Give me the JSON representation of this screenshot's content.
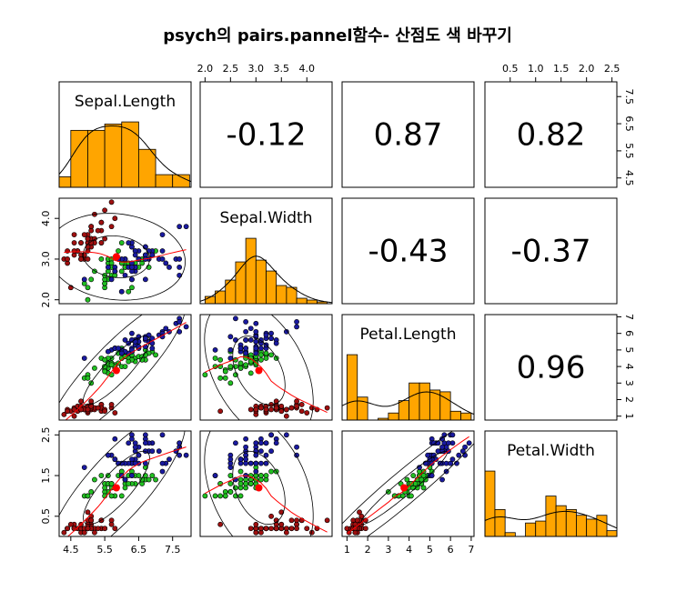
{
  "chart_data": {
    "type": "scatter-matrix",
    "title": "psych의 pairs.pannel함수- 산점도 색 바꾸기",
    "variables": [
      "Sepal.Length",
      "Sepal.Width",
      "Petal.Length",
      "Petal.Width"
    ],
    "lims": [
      [
        4.156,
        8.044
      ],
      [
        1.904,
        4.496
      ],
      [
        0.764,
        7.136
      ],
      [
        0.004,
        2.596
      ]
    ],
    "xticks": [
      [
        4.5,
        5.5,
        6.5,
        7.5
      ],
      [
        {
          "value": 2,
          "label": "2.0"
        },
        2.5,
        {
          "value": 3,
          "label": "3.0"
        },
        3.5,
        {
          "value": 4,
          "label": "4.0"
        }
      ],
      [
        1,
        2,
        3,
        4,
        5,
        6,
        7
      ],
      [
        0.5,
        {
          "value": 1,
          "label": "1.0"
        },
        1.5,
        {
          "value": 2,
          "label": "2.0"
        },
        2.5
      ]
    ],
    "yticks": [
      [
        4.5,
        5.5,
        6.5,
        7.5
      ],
      [
        {
          "value": 2,
          "label": "2.0"
        },
        {
          "value": 3,
          "label": "3.0"
        },
        {
          "value": 4,
          "label": "4.0"
        }
      ],
      [
        1,
        2,
        3,
        4,
        5,
        6,
        7
      ],
      [
        0.5,
        1.5,
        2.5
      ]
    ],
    "correlations": [
      -0.12,
      0.87,
      0.82,
      -0.43,
      -0.37,
      0.96
    ],
    "hist_color": "#ffa500",
    "histograms": [
      {
        "bins": [
          4,
          4.5,
          5,
          5.5,
          6,
          6.5,
          7,
          7.5,
          8
        ],
        "counts": [
          5,
          27,
          27,
          30,
          31,
          18,
          6,
          6
        ]
      },
      {
        "bins": [
          2,
          2.2,
          2.4,
          2.6,
          2.8,
          3,
          3.2,
          3.4,
          3.6,
          3.8,
          4,
          4.2,
          4.4
        ],
        "counts": [
          4,
          7,
          13,
          23,
          36,
          24,
          18,
          10,
          9,
          3,
          2,
          1
        ]
      },
      {
        "bins": [
          1,
          1.5,
          2,
          2.5,
          3,
          3.5,
          4,
          4.5,
          5,
          5.5,
          6,
          6.5,
          7
        ],
        "counts": [
          37,
          13,
          0,
          1,
          4,
          11,
          21,
          21,
          17,
          16,
          5,
          4
        ]
      },
      {
        "bins": [
          0,
          0.2,
          0.4,
          0.6,
          0.8,
          1,
          1.2,
          1.4,
          1.6,
          1.8,
          2,
          2.2,
          2.4,
          2.6
        ],
        "counts": [
          34,
          14,
          2,
          0,
          7,
          8,
          21,
          16,
          14,
          11,
          9,
          11,
          3
        ]
      }
    ],
    "series": [
      {
        "color": "#a01010",
        "values": [
          [
            5.1,
            3.5,
            1.4,
            0.2
          ],
          [
            4.9,
            3.0,
            1.4,
            0.2
          ],
          [
            4.7,
            3.2,
            1.3,
            0.2
          ],
          [
            4.6,
            3.1,
            1.5,
            0.2
          ],
          [
            5.0,
            3.6,
            1.4,
            0.2
          ],
          [
            5.4,
            3.9,
            1.7,
            0.4
          ],
          [
            4.6,
            3.4,
            1.4,
            0.3
          ],
          [
            5.0,
            3.4,
            1.5,
            0.2
          ],
          [
            4.4,
            2.9,
            1.4,
            0.2
          ],
          [
            4.9,
            3.1,
            1.5,
            0.1
          ],
          [
            5.4,
            3.7,
            1.5,
            0.2
          ],
          [
            4.8,
            3.4,
            1.6,
            0.2
          ],
          [
            4.8,
            3.0,
            1.4,
            0.1
          ],
          [
            4.3,
            3.0,
            1.1,
            0.1
          ],
          [
            5.8,
            4.0,
            1.2,
            0.2
          ],
          [
            5.7,
            4.4,
            1.5,
            0.4
          ],
          [
            5.4,
            3.9,
            1.3,
            0.4
          ],
          [
            5.1,
            3.5,
            1.4,
            0.3
          ],
          [
            5.7,
            3.8,
            1.7,
            0.3
          ],
          [
            5.1,
            3.8,
            1.5,
            0.3
          ],
          [
            5.4,
            3.4,
            1.7,
            0.2
          ],
          [
            5.1,
            3.7,
            1.5,
            0.4
          ],
          [
            4.6,
            3.6,
            1.0,
            0.2
          ],
          [
            5.1,
            3.3,
            1.7,
            0.5
          ],
          [
            4.8,
            3.4,
            1.9,
            0.2
          ],
          [
            5.0,
            3.0,
            1.6,
            0.2
          ],
          [
            5.0,
            3.4,
            1.6,
            0.4
          ],
          [
            5.2,
            3.5,
            1.5,
            0.2
          ],
          [
            5.2,
            3.4,
            1.4,
            0.2
          ],
          [
            4.7,
            3.2,
            1.6,
            0.2
          ],
          [
            4.8,
            3.1,
            1.6,
            0.2
          ],
          [
            5.4,
            3.4,
            1.5,
            0.4
          ],
          [
            5.2,
            4.1,
            1.5,
            0.1
          ],
          [
            5.5,
            4.2,
            1.4,
            0.2
          ],
          [
            4.9,
            3.1,
            1.5,
            0.2
          ],
          [
            5.0,
            3.2,
            1.2,
            0.2
          ],
          [
            5.5,
            3.5,
            1.3,
            0.2
          ],
          [
            4.9,
            3.6,
            1.4,
            0.1
          ],
          [
            4.4,
            3.0,
            1.3,
            0.2
          ],
          [
            5.1,
            3.4,
            1.5,
            0.2
          ],
          [
            5.0,
            3.5,
            1.3,
            0.3
          ],
          [
            4.5,
            2.3,
            1.3,
            0.3
          ],
          [
            4.4,
            3.2,
            1.3,
            0.2
          ],
          [
            5.0,
            3.5,
            1.6,
            0.6
          ],
          [
            5.1,
            3.8,
            1.9,
            0.4
          ],
          [
            4.8,
            3.0,
            1.4,
            0.3
          ],
          [
            5.1,
            3.8,
            1.6,
            0.2
          ],
          [
            4.6,
            3.2,
            1.4,
            0.2
          ],
          [
            5.3,
            3.7,
            1.5,
            0.2
          ],
          [
            5.0,
            3.3,
            1.4,
            0.2
          ]
        ]
      },
      {
        "color": "#22c022",
        "values": [
          [
            7.0,
            3.2,
            4.7,
            1.4
          ],
          [
            6.4,
            3.2,
            4.5,
            1.5
          ],
          [
            6.9,
            3.1,
            4.9,
            1.5
          ],
          [
            5.5,
            2.3,
            4.0,
            1.3
          ],
          [
            6.5,
            2.8,
            4.6,
            1.5
          ],
          [
            5.7,
            2.8,
            4.5,
            1.3
          ],
          [
            6.3,
            3.3,
            4.7,
            1.6
          ],
          [
            4.9,
            2.4,
            3.3,
            1.0
          ],
          [
            6.6,
            2.9,
            4.6,
            1.3
          ],
          [
            5.2,
            2.7,
            3.9,
            1.4
          ],
          [
            5.0,
            2.0,
            3.5,
            1.0
          ],
          [
            5.9,
            3.0,
            4.2,
            1.5
          ],
          [
            6.0,
            2.2,
            4.0,
            1.0
          ],
          [
            6.1,
            2.9,
            4.7,
            1.4
          ],
          [
            5.6,
            2.9,
            3.6,
            1.3
          ],
          [
            6.7,
            3.1,
            4.4,
            1.4
          ],
          [
            5.6,
            3.0,
            4.5,
            1.5
          ],
          [
            5.8,
            2.7,
            4.1,
            1.0
          ],
          [
            6.2,
            2.2,
            4.5,
            1.5
          ],
          [
            5.6,
            2.5,
            3.9,
            1.1
          ],
          [
            5.9,
            3.2,
            4.8,
            1.8
          ],
          [
            6.1,
            2.8,
            4.0,
            1.3
          ],
          [
            6.3,
            2.5,
            4.9,
            1.5
          ],
          [
            6.1,
            2.8,
            4.7,
            1.2
          ],
          [
            6.4,
            2.9,
            4.3,
            1.3
          ],
          [
            6.6,
            3.0,
            4.4,
            1.4
          ],
          [
            6.8,
            2.8,
            4.8,
            1.4
          ],
          [
            6.7,
            3.0,
            5.0,
            1.7
          ],
          [
            6.0,
            2.9,
            4.5,
            1.5
          ],
          [
            5.7,
            2.6,
            3.5,
            1.0
          ],
          [
            5.5,
            2.4,
            3.8,
            1.1
          ],
          [
            5.5,
            2.4,
            3.7,
            1.0
          ],
          [
            5.8,
            2.7,
            3.9,
            1.2
          ],
          [
            6.0,
            2.7,
            5.1,
            1.6
          ],
          [
            5.4,
            3.0,
            4.5,
            1.5
          ],
          [
            6.0,
            3.4,
            4.5,
            1.6
          ],
          [
            6.7,
            3.1,
            4.7,
            1.5
          ],
          [
            6.3,
            2.3,
            4.4,
            1.3
          ],
          [
            5.6,
            3.0,
            4.1,
            1.3
          ],
          [
            5.5,
            2.5,
            4.0,
            1.3
          ],
          [
            5.5,
            2.6,
            4.4,
            1.2
          ],
          [
            6.1,
            3.0,
            4.6,
            1.4
          ],
          [
            5.8,
            2.6,
            4.0,
            1.2
          ],
          [
            5.0,
            2.3,
            3.3,
            1.0
          ],
          [
            5.6,
            2.7,
            4.2,
            1.3
          ],
          [
            5.7,
            3.0,
            4.2,
            1.2
          ],
          [
            5.7,
            2.9,
            4.2,
            1.3
          ],
          [
            6.2,
            2.9,
            4.3,
            1.3
          ],
          [
            5.1,
            2.5,
            3.0,
            1.1
          ],
          [
            5.7,
            2.8,
            4.1,
            1.3
          ]
        ]
      },
      {
        "color": "#1a1aa0",
        "values": [
          [
            6.3,
            3.3,
            6.0,
            2.5
          ],
          [
            5.8,
            2.7,
            5.1,
            1.9
          ],
          [
            7.1,
            3.0,
            5.9,
            2.1
          ],
          [
            6.3,
            2.9,
            5.6,
            1.8
          ],
          [
            6.5,
            3.0,
            5.8,
            2.2
          ],
          [
            7.6,
            3.0,
            6.6,
            2.1
          ],
          [
            4.9,
            2.5,
            4.5,
            1.7
          ],
          [
            7.3,
            2.9,
            6.3,
            1.8
          ],
          [
            6.7,
            2.5,
            5.8,
            1.8
          ],
          [
            7.2,
            3.6,
            6.1,
            2.5
          ],
          [
            6.5,
            3.2,
            5.1,
            2.0
          ],
          [
            6.4,
            2.7,
            5.3,
            1.9
          ],
          [
            6.8,
            3.0,
            5.5,
            2.1
          ],
          [
            5.7,
            2.5,
            5.0,
            2.0
          ],
          [
            5.8,
            2.8,
            5.1,
            2.4
          ],
          [
            6.4,
            3.2,
            5.3,
            2.3
          ],
          [
            6.5,
            3.0,
            5.5,
            1.8
          ],
          [
            7.7,
            3.8,
            6.7,
            2.2
          ],
          [
            7.7,
            2.6,
            6.9,
            2.3
          ],
          [
            6.0,
            2.2,
            5.0,
            1.5
          ],
          [
            6.9,
            3.2,
            5.7,
            2.3
          ],
          [
            5.6,
            2.8,
            4.9,
            2.0
          ],
          [
            7.7,
            2.8,
            6.7,
            2.0
          ],
          [
            6.3,
            2.7,
            4.9,
            1.8
          ],
          [
            6.7,
            3.3,
            5.7,
            2.1
          ],
          [
            7.2,
            3.2,
            6.0,
            1.8
          ],
          [
            6.2,
            2.8,
            4.8,
            1.8
          ],
          [
            6.1,
            3.0,
            4.9,
            1.8
          ],
          [
            6.4,
            2.8,
            5.6,
            2.1
          ],
          [
            7.2,
            3.0,
            5.8,
            1.6
          ],
          [
            7.4,
            2.8,
            6.1,
            1.9
          ],
          [
            7.9,
            3.8,
            6.4,
            2.0
          ],
          [
            6.4,
            2.8,
            5.6,
            2.2
          ],
          [
            6.3,
            2.8,
            5.1,
            1.5
          ],
          [
            6.1,
            2.6,
            5.6,
            1.4
          ],
          [
            7.7,
            3.0,
            6.1,
            2.3
          ],
          [
            6.3,
            3.4,
            5.6,
            2.4
          ],
          [
            6.4,
            3.1,
            5.5,
            1.8
          ],
          [
            6.0,
            3.0,
            4.8,
            1.8
          ],
          [
            6.9,
            3.1,
            5.4,
            2.1
          ],
          [
            6.7,
            3.1,
            5.6,
            2.4
          ],
          [
            6.9,
            3.1,
            5.1,
            2.3
          ],
          [
            5.8,
            2.7,
            5.1,
            1.9
          ],
          [
            6.8,
            3.2,
            5.9,
            2.3
          ],
          [
            6.7,
            3.3,
            5.7,
            2.5
          ],
          [
            6.7,
            3.0,
            5.2,
            2.3
          ],
          [
            6.3,
            2.5,
            5.0,
            1.9
          ],
          [
            6.5,
            3.0,
            5.2,
            2.0
          ],
          [
            6.2,
            3.4,
            5.4,
            2.3
          ],
          [
            5.9,
            3.0,
            5.1,
            1.8
          ]
        ]
      }
    ]
  }
}
